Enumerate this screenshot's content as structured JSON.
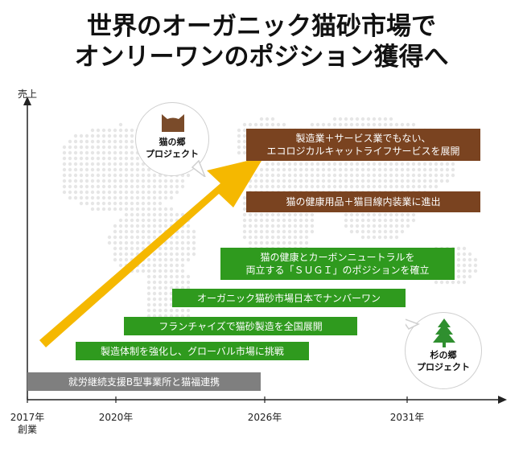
{
  "title": {
    "line1": "世界のオーガニック猫砂市場で",
    "line2": "オンリーワンのポジション獲得へ"
  },
  "axes": {
    "y_label": "売上",
    "x_tick_start": "2017年",
    "x_tick_start_sub": "創業",
    "x_ticks": [
      "2020年",
      "2026年",
      "2031年"
    ]
  },
  "badges": {
    "cat": {
      "label_line1": "猫の郷",
      "label_line2": "プロジェクト",
      "icon": "cat-head-icon",
      "color": "#7a4b2a"
    },
    "tree": {
      "label_line1": "杉の郷",
      "label_line2": "プロジェクト",
      "icon": "tree-icon",
      "color": "#2f8f2f"
    }
  },
  "colors": {
    "gray": "#7f7f7f",
    "green": "#2f9a1e",
    "brown": "#7a4320",
    "arrow": "#f5b800",
    "map_dots": "#e6e6e6"
  },
  "chart_data": {
    "type": "timeline",
    "x_ticks": [
      "2017年",
      "2020年",
      "2026年",
      "2031年"
    ],
    "bars": [
      {
        "label": "就労継続支援B型事業所と猫福連携",
        "color": "gray"
      },
      {
        "label": "製造体制を強化し、グローバル市場に挑戦",
        "color": "green"
      },
      {
        "label": "フランチャイズで猫砂製造を全国展開",
        "color": "green"
      },
      {
        "label": "オーガニック猫砂市場日本でナンバーワン",
        "color": "green"
      },
      {
        "label": "猫の健康とカーボンニュートラルを\n両立する「ＳＵＧＩ」のポジションを確立",
        "color": "green"
      },
      {
        "label": "猫の健康用品＋猫目線内装業に進出",
        "color": "brown"
      },
      {
        "label": "製造業＋サービス業でもない、\nエコロジカルキャットライフサービスを展開",
        "color": "brown"
      }
    ],
    "trend_arrow": "up"
  }
}
